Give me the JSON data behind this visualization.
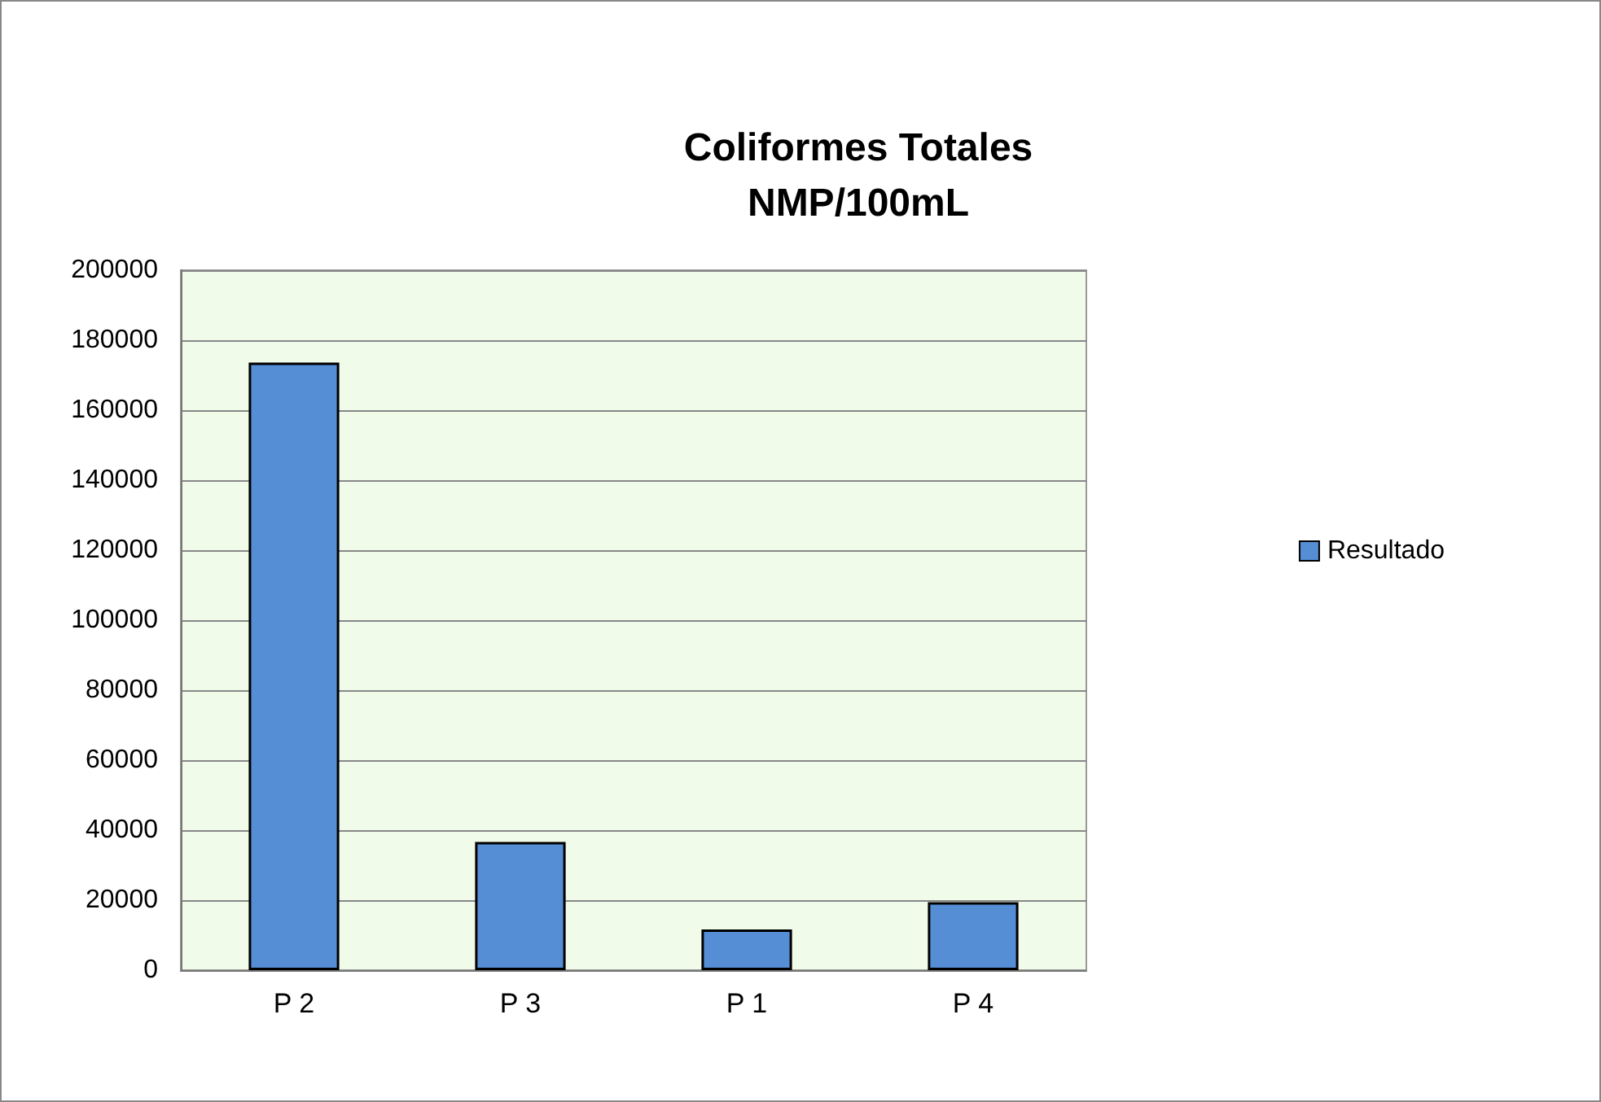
{
  "chart_data": {
    "type": "bar",
    "title": "Coliformes Totales\nNMP/100mL",
    "categories": [
      "P 2",
      "P 3",
      "P 1",
      "P 4"
    ],
    "series": [
      {
        "name": "Resultado",
        "color": "#558ed5",
        "values": [
          173600,
          36600,
          11600,
          19400
        ]
      }
    ],
    "ylim": [
      0,
      200000
    ],
    "yticks": [
      0,
      20000,
      40000,
      60000,
      80000,
      100000,
      120000,
      140000,
      160000,
      180000,
      200000
    ],
    "grid": "y",
    "legend": "right"
  }
}
